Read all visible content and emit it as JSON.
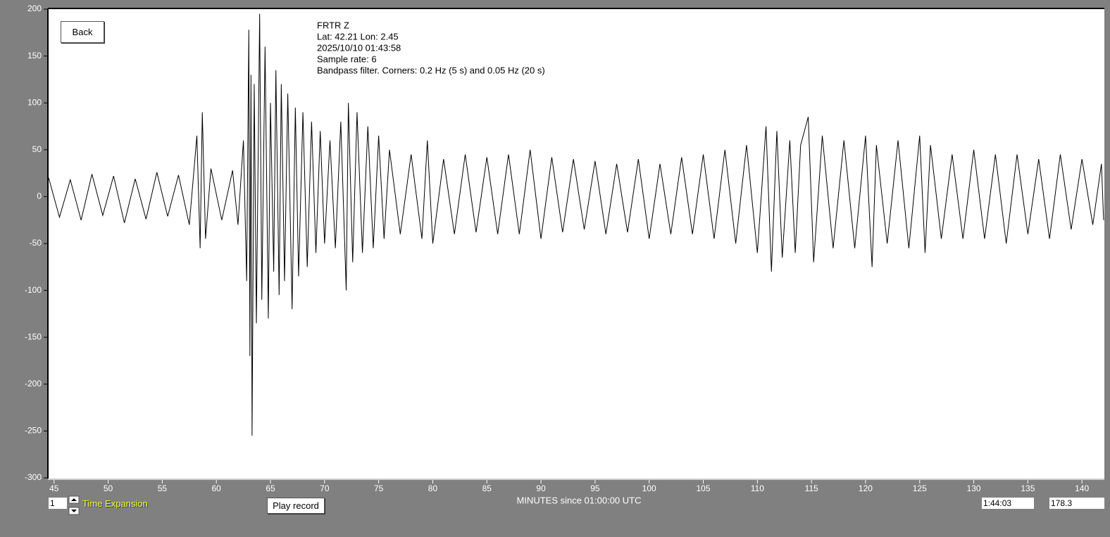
{
  "ui": {
    "back_button": "Back",
    "info": [
      "FRTR  Z",
      "Lat: 42.21 Lon: 2.45",
      "2025/10/10 01:43:58",
      "Sample rate: 6",
      "Bandpass filter. Corners: 0.2 Hz (5 s) and 0.05 Hz (20 s)"
    ],
    "expansion_value": "1",
    "expansion_label": "Time Expansion",
    "play_button": "Play record",
    "time_field": "1:44:03",
    "value_field": "178.3"
  },
  "chart_data": {
    "type": "line",
    "x_label": "MINUTES since 01:00:00 UTC",
    "x": [
      44.5,
      45.5,
      46.5,
      47.5,
      48.5,
      49.5,
      50.5,
      51.5,
      52.5,
      53.5,
      54.5,
      55.5,
      56.5,
      57.5,
      58.2,
      58.5,
      58.7,
      59,
      59.5,
      60.5,
      61.5,
      62,
      62.5,
      62.8,
      63,
      63.1,
      63.2,
      63.3,
      63.5,
      63.7,
      64,
      64.2,
      64.5,
      64.8,
      65,
      65.3,
      65.5,
      65.8,
      66,
      66.3,
      66.6,
      67,
      67.3,
      67.6,
      68,
      68.4,
      68.8,
      69.2,
      69.6,
      70,
      70.5,
      71,
      71.5,
      72,
      72.2,
      72.6,
      73,
      73.5,
      74,
      74.5,
      75,
      75.5,
      76,
      77,
      78,
      79,
      79.5,
      80,
      81,
      82,
      83,
      84,
      85,
      86,
      87,
      88,
      89,
      90,
      91,
      92,
      93,
      94,
      95,
      96,
      97,
      98,
      99,
      100,
      101,
      102,
      103,
      104,
      105,
      106,
      107,
      108,
      109,
      110,
      110.8,
      111.3,
      111.8,
      112.3,
      113,
      113.5,
      114,
      114.7,
      115.2,
      116,
      117,
      118,
      119,
      120,
      120.6,
      121,
      122,
      123,
      124,
      125,
      125.5,
      126,
      127,
      128,
      129,
      130,
      131,
      132,
      133,
      134,
      135,
      136,
      137,
      138,
      139,
      140,
      141,
      141.8,
      142
    ],
    "series": [
      {
        "color": "#000000",
        "values": [
          20,
          -22,
          18,
          -25,
          24,
          -20,
          22,
          -28,
          19,
          -24,
          26,
          -21,
          23,
          -30,
          65,
          -55,
          90,
          -45,
          30,
          -25,
          28,
          -30,
          60,
          -90,
          178,
          -170,
          130,
          -255,
          120,
          -135,
          195,
          -110,
          160,
          -130,
          100,
          -80,
          135,
          -105,
          120,
          -90,
          110,
          -120,
          95,
          -85,
          90,
          -75,
          80,
          -60,
          70,
          -50,
          60,
          -55,
          80,
          -100,
          100,
          -70,
          90,
          -60,
          75,
          -55,
          65,
          -45,
          50,
          -40,
          45,
          -45,
          60,
          -50,
          40,
          -40,
          45,
          -38,
          42,
          -40,
          45,
          -40,
          50,
          -45,
          42,
          -38,
          40,
          -35,
          38,
          -40,
          35,
          -38,
          40,
          -45,
          35,
          -40,
          42,
          -40,
          45,
          -45,
          50,
          -50,
          55,
          -60,
          75,
          -80,
          70,
          -65,
          60,
          -60,
          55,
          85,
          -70,
          65,
          -55,
          60,
          -55,
          65,
          -75,
          55,
          -50,
          60,
          -55,
          65,
          -60,
          55,
          -45,
          45,
          -45,
          50,
          -45,
          45,
          -50,
          45,
          -40,
          40,
          -45,
          45,
          -35,
          40,
          -30,
          35,
          -25
        ]
      }
    ],
    "xlim": [
      44.43,
      142.07
    ],
    "ylim": [
      -300,
      200
    ],
    "xticks": [
      45,
      50,
      55,
      60,
      65,
      70,
      75,
      80,
      85,
      90,
      95,
      100,
      105,
      110,
      115,
      120,
      125,
      130,
      135,
      140
    ],
    "yticks": [
      -300,
      -250,
      -200,
      -150,
      -100,
      -50,
      0,
      50,
      100,
      150,
      200
    ]
  }
}
